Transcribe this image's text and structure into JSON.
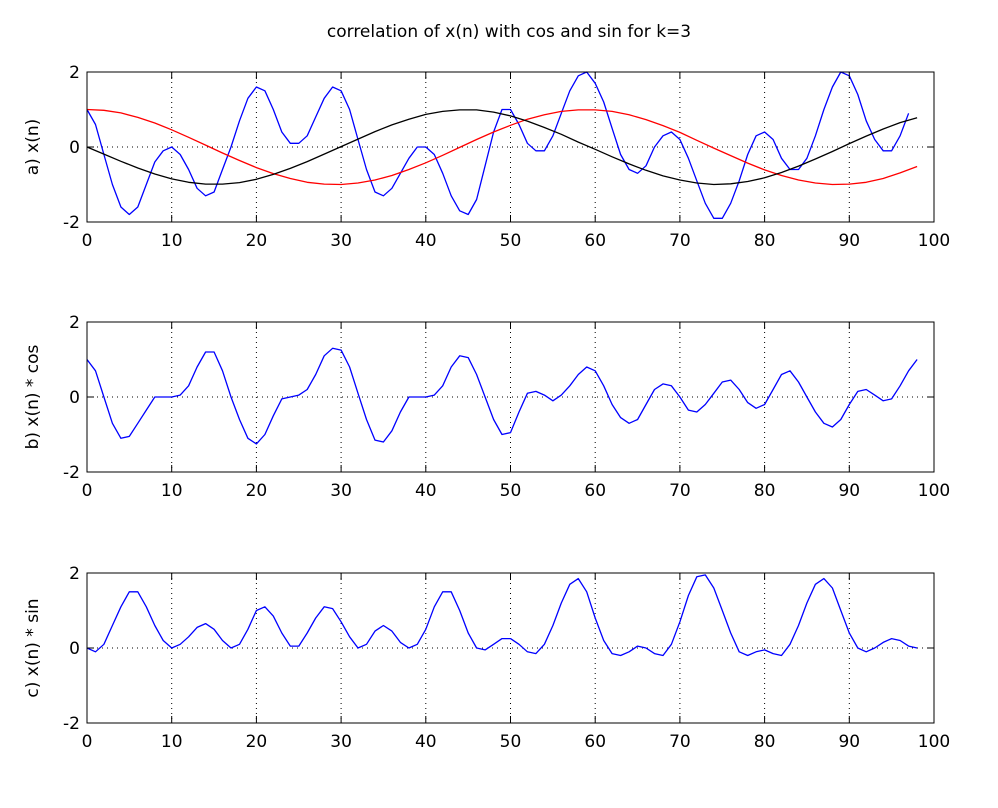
{
  "title": "correlation of x(n) with cos and sin for k=3",
  "chart_data": [
    {
      "type": "line",
      "ylabel": "a) x(n)",
      "xlim": [
        0,
        100
      ],
      "ylim": [
        -2,
        2
      ],
      "xticks": [
        0,
        10,
        20,
        30,
        40,
        50,
        60,
        70,
        80,
        90,
        100
      ],
      "yticks": [
        -2,
        0,
        2
      ],
      "grid": true,
      "series": [
        {
          "color": "#0000ff",
          "x": [
            0,
            1,
            2,
            3,
            4,
            5,
            6,
            7,
            8,
            9,
            10,
            11,
            12,
            13,
            14,
            15,
            16,
            17,
            18,
            19,
            20,
            21,
            22,
            23,
            24,
            25,
            26,
            27,
            28,
            29,
            30,
            31,
            32,
            33,
            34,
            35,
            36,
            37,
            38,
            39,
            40,
            41,
            42,
            43,
            44,
            45,
            46,
            47,
            48,
            49,
            50,
            51,
            52,
            53,
            54,
            55,
            56,
            57,
            58,
            59,
            60,
            61,
            62,
            63,
            64,
            65,
            66,
            67,
            68,
            69,
            70,
            71,
            72,
            73,
            74,
            75,
            76,
            77,
            78,
            79,
            80,
            81,
            82,
            83,
            84,
            85,
            86,
            87,
            88,
            89,
            90,
            91,
            92,
            93,
            94,
            95,
            96,
            97
          ],
          "y": [
            1.0,
            0.6,
            -0.2,
            -1.0,
            -1.6,
            -1.8,
            -1.6,
            -1.0,
            -0.4,
            -0.1,
            0.0,
            -0.2,
            -0.6,
            -1.1,
            -1.3,
            -1.2,
            -0.6,
            0.0,
            0.7,
            1.3,
            1.6,
            1.5,
            1.0,
            0.4,
            0.1,
            0.1,
            0.3,
            0.8,
            1.3,
            1.6,
            1.5,
            1.0,
            0.2,
            -0.6,
            -1.2,
            -1.3,
            -1.1,
            -0.7,
            -0.3,
            0.0,
            0.0,
            -0.2,
            -0.7,
            -1.3,
            -1.7,
            -1.8,
            -1.4,
            -0.5,
            0.4,
            1.0,
            1.0,
            0.6,
            0.1,
            -0.1,
            -0.1,
            0.3,
            0.9,
            1.5,
            1.9,
            2.0,
            1.7,
            1.2,
            0.5,
            -0.2,
            -0.6,
            -0.7,
            -0.5,
            0.0,
            0.3,
            0.4,
            0.2,
            -0.3,
            -0.9,
            -1.5,
            -1.9,
            -1.9,
            -1.5,
            -0.9,
            -0.2,
            0.3,
            0.4,
            0.2,
            -0.3,
            -0.6,
            -0.6,
            -0.3,
            0.3,
            1.0,
            1.6,
            2.0,
            1.9,
            1.4,
            0.7,
            0.2,
            -0.1,
            -0.1,
            0.3,
            0.9
          ]
        },
        {
          "color": "#ff0000",
          "x": [
            0,
            2,
            4,
            6,
            8,
            10,
            12,
            14,
            16,
            18,
            20,
            22,
            24,
            26,
            28,
            30,
            32,
            34,
            36,
            38,
            40,
            42,
            44,
            46,
            48,
            50,
            52,
            54,
            56,
            58,
            60,
            62,
            64,
            66,
            68,
            70,
            72,
            74,
            76,
            78,
            80,
            82,
            84,
            86,
            88,
            90,
            92,
            94,
            96,
            98
          ],
          "y": [
            1.0,
            0.98,
            0.91,
            0.79,
            0.64,
            0.46,
            0.26,
            0.05,
            -0.16,
            -0.36,
            -0.55,
            -0.71,
            -0.84,
            -0.94,
            -0.99,
            -1.0,
            -0.96,
            -0.88,
            -0.76,
            -0.6,
            -0.42,
            -0.22,
            -0.01,
            0.2,
            0.4,
            0.58,
            0.74,
            0.86,
            0.95,
            0.99,
            0.99,
            0.95,
            0.86,
            0.73,
            0.57,
            0.39,
            0.18,
            -0.03,
            -0.23,
            -0.43,
            -0.61,
            -0.76,
            -0.88,
            -0.96,
            -1.0,
            -0.99,
            -0.94,
            -0.84,
            -0.69,
            -0.52
          ]
        },
        {
          "color": "#000000",
          "x": [
            0,
            2,
            4,
            6,
            8,
            10,
            12,
            14,
            16,
            18,
            20,
            22,
            24,
            26,
            28,
            30,
            32,
            34,
            36,
            38,
            40,
            42,
            44,
            46,
            48,
            50,
            52,
            54,
            56,
            58,
            60,
            62,
            64,
            66,
            68,
            70,
            72,
            74,
            76,
            78,
            80,
            82,
            84,
            86,
            88,
            90,
            92,
            94,
            96,
            98
          ],
          "y": [
            0.0,
            -0.19,
            -0.38,
            -0.56,
            -0.72,
            -0.85,
            -0.94,
            -0.99,
            -0.99,
            -0.95,
            -0.86,
            -0.73,
            -0.57,
            -0.39,
            -0.19,
            0.01,
            0.21,
            0.41,
            0.59,
            0.74,
            0.87,
            0.95,
            0.99,
            0.99,
            0.93,
            0.83,
            0.69,
            0.52,
            0.34,
            0.13,
            -0.06,
            -0.26,
            -0.45,
            -0.62,
            -0.77,
            -0.88,
            -0.96,
            -1.0,
            -0.98,
            -0.92,
            -0.82,
            -0.68,
            -0.51,
            -0.32,
            -0.12,
            0.09,
            0.29,
            0.48,
            0.65,
            0.78
          ]
        }
      ]
    },
    {
      "type": "line",
      "ylabel": "b) x(n) * cos",
      "xlim": [
        0,
        100
      ],
      "ylim": [
        -2,
        2
      ],
      "xticks": [
        0,
        10,
        20,
        30,
        40,
        50,
        60,
        70,
        80,
        90,
        100
      ],
      "yticks": [
        -2,
        0,
        2
      ],
      "grid": true,
      "series": [
        {
          "color": "#0000ff",
          "x": [
            0,
            1,
            2,
            3,
            4,
            5,
            6,
            7,
            8,
            9,
            10,
            11,
            12,
            13,
            14,
            15,
            16,
            17,
            18,
            19,
            20,
            21,
            22,
            23,
            24,
            25,
            26,
            27,
            28,
            29,
            30,
            31,
            32,
            33,
            34,
            35,
            36,
            37,
            38,
            39,
            40,
            41,
            42,
            43,
            44,
            45,
            46,
            47,
            48,
            49,
            50,
            51,
            52,
            53,
            54,
            55,
            56,
            57,
            58,
            59,
            60,
            61,
            62,
            63,
            64,
            65,
            66,
            67,
            68,
            69,
            70,
            71,
            72,
            73,
            74,
            75,
            76,
            77,
            78,
            79,
            80,
            81,
            82,
            83,
            84,
            85,
            86,
            87,
            88,
            89,
            90,
            91,
            92,
            93,
            94,
            95,
            96,
            97,
            98
          ],
          "y": [
            1.0,
            0.7,
            0.0,
            -0.7,
            -1.1,
            -1.05,
            -0.7,
            -0.35,
            0.0,
            0.0,
            0.0,
            0.05,
            0.3,
            0.8,
            1.2,
            1.2,
            0.7,
            0.0,
            -0.6,
            -1.1,
            -1.25,
            -1.0,
            -0.5,
            -0.05,
            0.0,
            0.05,
            0.2,
            0.6,
            1.1,
            1.3,
            1.25,
            0.8,
            0.1,
            -0.6,
            -1.15,
            -1.2,
            -0.9,
            -0.4,
            0.0,
            0.0,
            0.0,
            0.05,
            0.3,
            0.8,
            1.1,
            1.05,
            0.6,
            0.0,
            -0.6,
            -1.0,
            -0.95,
            -0.4,
            0.1,
            0.15,
            0.05,
            -0.1,
            0.05,
            0.3,
            0.6,
            0.8,
            0.7,
            0.3,
            -0.2,
            -0.55,
            -0.7,
            -0.6,
            -0.2,
            0.2,
            0.35,
            0.3,
            0.0,
            -0.35,
            -0.4,
            -0.2,
            0.1,
            0.4,
            0.45,
            0.2,
            -0.15,
            -0.3,
            -0.2,
            0.2,
            0.6,
            0.7,
            0.4,
            0.0,
            -0.4,
            -0.7,
            -0.8,
            -0.6,
            -0.2,
            0.15,
            0.2,
            0.05,
            -0.1,
            -0.05,
            0.3,
            0.7,
            1.0
          ]
        }
      ]
    },
    {
      "type": "line",
      "ylabel": "c) x(n) * sin",
      "xlim": [
        0,
        100
      ],
      "ylim": [
        -2,
        2
      ],
      "xticks": [
        0,
        10,
        20,
        30,
        40,
        50,
        60,
        70,
        80,
        90,
        100
      ],
      "yticks": [
        -2,
        0,
        2
      ],
      "grid": true,
      "series": [
        {
          "color": "#0000ff",
          "x": [
            0,
            1,
            2,
            3,
            4,
            5,
            6,
            7,
            8,
            9,
            10,
            11,
            12,
            13,
            14,
            15,
            16,
            17,
            18,
            19,
            20,
            21,
            22,
            23,
            24,
            25,
            26,
            27,
            28,
            29,
            30,
            31,
            32,
            33,
            34,
            35,
            36,
            37,
            38,
            39,
            40,
            41,
            42,
            43,
            44,
            45,
            46,
            47,
            48,
            49,
            50,
            51,
            52,
            53,
            54,
            55,
            56,
            57,
            58,
            59,
            60,
            61,
            62,
            63,
            64,
            65,
            66,
            67,
            68,
            69,
            70,
            71,
            72,
            73,
            74,
            75,
            76,
            77,
            78,
            79,
            80,
            81,
            82,
            83,
            84,
            85,
            86,
            87,
            88,
            89,
            90,
            91,
            92,
            93,
            94,
            95,
            96,
            97,
            98
          ],
          "y": [
            0.0,
            -0.1,
            0.1,
            0.6,
            1.1,
            1.5,
            1.5,
            1.1,
            0.6,
            0.2,
            0.0,
            0.1,
            0.3,
            0.55,
            0.65,
            0.5,
            0.2,
            0.0,
            0.1,
            0.5,
            1.0,
            1.1,
            0.85,
            0.4,
            0.05,
            0.05,
            0.4,
            0.8,
            1.1,
            1.05,
            0.7,
            0.3,
            0.0,
            0.1,
            0.45,
            0.6,
            0.45,
            0.15,
            0.0,
            0.1,
            0.5,
            1.1,
            1.5,
            1.5,
            1.0,
            0.4,
            0.0,
            -0.05,
            0.1,
            0.25,
            0.25,
            0.1,
            -0.1,
            -0.15,
            0.1,
            0.6,
            1.2,
            1.7,
            1.85,
            1.5,
            0.8,
            0.2,
            -0.15,
            -0.2,
            -0.1,
            0.05,
            0.0,
            -0.15,
            -0.2,
            0.1,
            0.7,
            1.4,
            1.9,
            1.95,
            1.6,
            1.0,
            0.4,
            -0.1,
            -0.2,
            -0.1,
            -0.05,
            -0.15,
            -0.2,
            0.1,
            0.6,
            1.2,
            1.7,
            1.85,
            1.6,
            1.0,
            0.4,
            0.0,
            -0.1,
            0.0,
            0.15,
            0.25,
            0.2,
            0.05,
            0.0
          ]
        }
      ]
    }
  ]
}
